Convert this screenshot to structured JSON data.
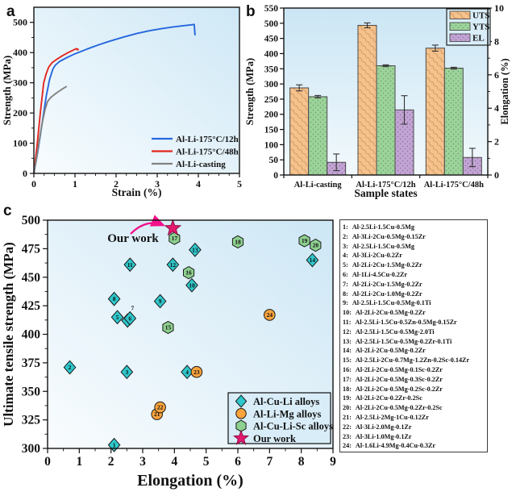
{
  "panels": {
    "a": "a",
    "b": "b",
    "c": "c"
  },
  "chart_data": [
    {
      "id": "a",
      "type": "line",
      "xlabel": "Strain (%)",
      "ylabel": "Strength (MPa)",
      "xlim": [
        0,
        5
      ],
      "ylim": [
        0,
        550
      ],
      "xticks": [
        0,
        1,
        2,
        3,
        4,
        5
      ],
      "yticks": [
        0,
        100,
        200,
        300,
        400,
        500
      ],
      "grid": false,
      "legend_position": "bottom-right",
      "series": [
        {
          "name": "Al-Li-175°C/12h",
          "color": "#2667de",
          "points": [
            [
              0,
              0
            ],
            [
              0.1,
              75
            ],
            [
              0.2,
              165
            ],
            [
              0.3,
              255
            ],
            [
              0.38,
              310
            ],
            [
              0.46,
              345
            ],
            [
              0.52,
              358
            ],
            [
              0.62,
              370
            ],
            [
              0.8,
              383
            ],
            [
              1.0,
              396
            ],
            [
              1.3,
              412
            ],
            [
              1.6,
              427
            ],
            [
              1.9,
              440
            ],
            [
              2.2,
              452
            ],
            [
              2.5,
              463
            ],
            [
              2.8,
              472
            ],
            [
              3.1,
              479
            ],
            [
              3.4,
              485
            ],
            [
              3.65,
              489
            ],
            [
              3.85,
              492
            ],
            [
              3.9,
              493
            ],
            [
              3.92,
              457
            ]
          ]
        },
        {
          "name": "Al-Li-175°C/48h",
          "color": "#e2261f",
          "points": [
            [
              0,
              0
            ],
            [
              0.08,
              95
            ],
            [
              0.16,
              205
            ],
            [
              0.24,
              300
            ],
            [
              0.3,
              330
            ],
            [
              0.36,
              352
            ],
            [
              0.44,
              366
            ],
            [
              0.56,
              378
            ],
            [
              0.7,
              390
            ],
            [
              0.85,
              401
            ],
            [
              0.97,
              409
            ],
            [
              1.04,
              413
            ],
            [
              1.06,
              409
            ],
            [
              1.09,
              412
            ]
          ]
        },
        {
          "name": "Al-Li-casting",
          "color": "#828282",
          "points": [
            [
              0,
              0
            ],
            [
              0.07,
              55
            ],
            [
              0.14,
              115
            ],
            [
              0.2,
              165
            ],
            [
              0.27,
              210
            ],
            [
              0.33,
              237
            ],
            [
              0.4,
              250
            ],
            [
              0.5,
              261
            ],
            [
              0.6,
              271
            ],
            [
              0.7,
              280
            ],
            [
              0.8,
              288
            ]
          ]
        }
      ]
    },
    {
      "id": "b",
      "type": "bar",
      "xlabel": "Sample states",
      "ylabel": "Strength (MPa)",
      "ylabel_right": "Elongation (%)",
      "ylim": [
        0,
        550
      ],
      "ylim_right": [
        0,
        10
      ],
      "yticks": [
        0,
        50,
        100,
        150,
        200,
        250,
        300,
        350,
        400,
        450,
        500,
        550
      ],
      "yticks_right": [
        0,
        2,
        4,
        6,
        8,
        10
      ],
      "categories": [
        "Al-Li-casting",
        "Al-Li-175°C/12h",
        "Al-Li-175°C/48h"
      ],
      "legend_position": "top-right",
      "series": [
        {
          "name": "UTS",
          "axis": "left",
          "color": "#f5c18c",
          "pattern": "hatch",
          "values": [
            287,
            493,
            418
          ],
          "errors": [
            10,
            8,
            10
          ]
        },
        {
          "name": "YTS",
          "axis": "left",
          "color": "#9dd39b",
          "pattern": "dots",
          "values": [
            258,
            360,
            352
          ],
          "errors": [
            4,
            3,
            3
          ]
        },
        {
          "name": "EL",
          "axis": "right",
          "color": "#c2a4d4",
          "pattern": "dots",
          "values": [
            0.76,
            3.9,
            1.05
          ],
          "errors": [
            0.5,
            0.85,
            0.55
          ]
        }
      ]
    },
    {
      "id": "c",
      "type": "scatter",
      "xlabel": "Elongation (%)",
      "ylabel": "Ultimate tensile strength (MPa)",
      "xlim": [
        0,
        9
      ],
      "ylim": [
        300,
        500
      ],
      "xticks": [
        0,
        1,
        2,
        3,
        4,
        5,
        6,
        7,
        8,
        9
      ],
      "yticks": [
        300,
        325,
        350,
        375,
        400,
        425,
        450,
        475,
        500
      ],
      "grid": false,
      "legend_position": "bottom-right",
      "annotation": {
        "text": "Our work",
        "color": "#f20f8b",
        "target": [
          3.95,
          493
        ]
      },
      "groups": [
        {
          "name": "Al-Cu-Li alloys",
          "marker": "diamond",
          "color": "#2ec7cb",
          "points": [
            {
              "n": "1",
              "x": 2.1,
              "y": 303
            },
            {
              "n": "2",
              "x": 0.7,
              "y": 371
            },
            {
              "n": "3",
              "x": 2.5,
              "y": 367
            },
            {
              "n": "4",
              "x": 4.4,
              "y": 367
            },
            {
              "n": "5",
              "x": 2.2,
              "y": 415
            },
            {
              "n": "7",
              "x": 2.52,
              "y": 412,
              "label_at": [
                2.68,
                423
              ]
            },
            {
              "n": "6",
              "x": 2.6,
              "y": 414
            },
            {
              "n": "8",
              "x": 2.1,
              "y": 431
            },
            {
              "n": "9",
              "x": 3.55,
              "y": 429
            },
            {
              "n": "10",
              "x": 4.55,
              "y": 443
            },
            {
              "n": "11",
              "x": 2.6,
              "y": 461
            },
            {
              "n": "12",
              "x": 3.95,
              "y": 461
            },
            {
              "n": "13",
              "x": 4.65,
              "y": 474
            },
            {
              "n": "14",
              "x": 8.35,
              "y": 465
            }
          ]
        },
        {
          "name": "Al-Cu-Li-Sc alloys",
          "marker": "hexagon",
          "color": "#8ed08f",
          "points": [
            {
              "n": "15",
              "x": 3.8,
              "y": 406
            },
            {
              "n": "16",
              "x": 4.45,
              "y": 454
            },
            {
              "n": "17",
              "x": 4.0,
              "y": 484
            },
            {
              "n": "18",
              "x": 6.0,
              "y": 481
            },
            {
              "n": "19",
              "x": 8.1,
              "y": 482
            },
            {
              "n": "20",
              "x": 8.45,
              "y": 478
            }
          ]
        },
        {
          "name": "Al-Li-Mg alloys",
          "marker": "circle",
          "color": "#f9a33c",
          "points": [
            {
              "n": "21",
              "x": 3.45,
              "y": 330
            },
            {
              "n": "22",
              "x": 3.55,
              "y": 336
            },
            {
              "n": "23",
              "x": 4.7,
              "y": 367
            },
            {
              "n": "24",
              "x": 7.0,
              "y": 417
            }
          ]
        },
        {
          "name": "Our work",
          "marker": "star",
          "color": "#e3186e",
          "points": [
            {
              "n": "",
              "x": 3.95,
              "y": 493
            }
          ]
        }
      ],
      "legend_order": [
        "Al-Cu-Li alloys",
        "Al-Li-Mg alloys",
        "Al-Cu-Li-Sc alloys",
        "Our work"
      ]
    }
  ],
  "alloy_list": {
    "items": [
      {
        "num": "1",
        "formula": "Al-2.5Li-1.5Cu-0.5Mg"
      },
      {
        "num": "2",
        "formula": "Al-3Li-2Cu-0.5Mg-0.15Zr"
      },
      {
        "num": "3",
        "formula": "Al-2.5Li-1.5Cu-0.5Mg"
      },
      {
        "num": "4",
        "formula": "Al-3Li-2Cu-0.2Zr"
      },
      {
        "num": "5",
        "formula": "Al-2Li-2Cu-1.5Mg-0.2Zr"
      },
      {
        "num": "6",
        "formula": "Al-1Li-4.5Cu-0.2Zr"
      },
      {
        "num": "7",
        "formula": "Al-2Li-2Cu-1.5Mg-0.2Zr"
      },
      {
        "num": "8",
        "formula": "Al-2Li-2Cu-1.0Mg-0.2Zr"
      },
      {
        "num": "9",
        "formula": "Al-2.5Li-1.5Cu-0.5Mg-0.1Ti"
      },
      {
        "num": "10",
        "formula": "Al-2Li-2Cu-0.5Mg-0.2Zr"
      },
      {
        "num": "11",
        "formula": "Al-2.5Li-1.5Cu-0.5Zn-0.5Mg-0.15Zr"
      },
      {
        "num": "12",
        "formula": "Al-2.5Li-1.5Cu-0.5Mg-2.0Ti"
      },
      {
        "num": "13",
        "formula": "Al-2.5Li-1.5Cu-0.5Mg-0.2Zr-0.1Ti"
      },
      {
        "num": "14",
        "formula": "Al-2Li-2Cu-0.5Mg-0.2Zr"
      },
      {
        "num": "15",
        "formula": "Al-2.5Li-2Cu-0.7Mg-1.2Zn-0.2Sc-0.14Zr"
      },
      {
        "num": "16",
        "formula": "Al-2Li-2Cu-0.5Mg-0.1Sc-0.2Zr"
      },
      {
        "num": "17",
        "formula": "Al-2Li-2Cu-0.5Mg-0.3Sc-0.2Zr"
      },
      {
        "num": "18",
        "formula": "Al-2Li-2Cu-0.5Mg-0.2Sc-0.2Zr"
      },
      {
        "num": "19",
        "formula": "Al-2Li-2Cu-0.2Zr-0.2Sc"
      },
      {
        "num": "20",
        "formula": "Al-2Li-2Cu-0.5Mg-0.2Zr-0.2Sc"
      },
      {
        "num": "21",
        "formula": "Al-2.5Li-2Mg-1Cu-0.12Zr"
      },
      {
        "num": "22",
        "formula": "Al-3Li-2.0Mg-0.1Zr"
      },
      {
        "num": "23",
        "formula": "Al-3Li-1.0Mg-0.1Zr"
      },
      {
        "num": "24",
        "formula": "Al-1.6Li-4.9Mg-0.4Cu-0.3Zr"
      }
    ]
  }
}
